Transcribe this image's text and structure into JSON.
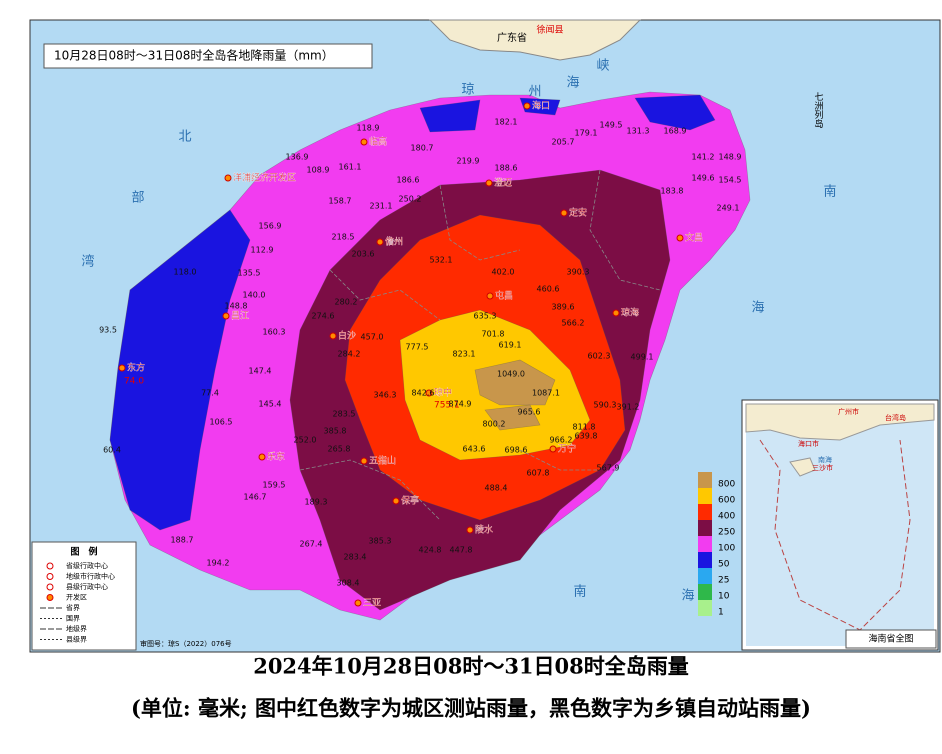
{
  "map_title": "10月28日08时～31日08时全岛各地降雨量（mm）",
  "caption": [
    "2024年10月28日08时～31日08时全岛雨量",
    "(单位: 毫米; 图中红色数字为城区测站雨量，黑色数字为乡镇自动站雨量)"
  ],
  "rain_scale": [
    {
      "value": 800,
      "color": "#c8964b"
    },
    {
      "value": 600,
      "color": "#ffc800"
    },
    {
      "value": 400,
      "color": "#ff2a00"
    },
    {
      "value": 250,
      "color": "#7c0d45"
    },
    {
      "value": 100,
      "color": "#f23cf0"
    },
    {
      "value": 50,
      "color": "#1a14e0"
    },
    {
      "value": 25,
      "color": "#2aa8f0"
    },
    {
      "value": 10,
      "color": "#2fb84a"
    },
    {
      "value": 1,
      "color": "#a8f08c"
    }
  ],
  "regions": [
    "广东省",
    "徐闻县",
    "七洲列岛"
  ],
  "sea_labels": [
    "北",
    "部",
    "湾",
    "琼",
    "州",
    "海",
    "峡",
    "南",
    "海",
    "南",
    "海"
  ],
  "cities": [
    "海口",
    "临高",
    "澄迈",
    "定安",
    "文昌",
    "屯昌",
    "琼海",
    "儋州",
    "洋浦经济开发区",
    "白沙",
    "昌江",
    "东方",
    "乐东",
    "五指山",
    "琼中",
    "万宁",
    "保亭",
    "陵水",
    "三亚"
  ],
  "city_values": [
    "74.0",
    "755.1"
  ],
  "stations": [
    "136.9",
    "108.9",
    "161.1",
    "118.9",
    "180.7",
    "219.9",
    "182.1",
    "188.6",
    "205.7",
    "179.1",
    "149.5",
    "131.3",
    "168.9",
    "141.2",
    "148.9",
    "149.6",
    "154.5",
    "183.8",
    "249.1",
    "186.6",
    "250.2",
    "231.1",
    "158.7",
    "156.9",
    "218.5",
    "112.9",
    "118.0",
    "135.5",
    "140.0",
    "148.8",
    "160.3",
    "274.6",
    "280.2",
    "203.6",
    "532.1",
    "402.0",
    "460.6",
    "390.3",
    "635.3",
    "701.8",
    "619.1",
    "777.5",
    "823.1",
    "1049.0",
    "1087.1",
    "842.6",
    "874.9",
    "965.6",
    "800.2",
    "811.8",
    "966.2",
    "643.6",
    "698.6",
    "607.8",
    "488.4",
    "457.0",
    "284.2",
    "346.3",
    "283.5",
    "385.8",
    "265.8",
    "252.0",
    "145.4",
    "147.4",
    "77.4",
    "106.5",
    "159.5",
    "146.7",
    "188.7",
    "194.2",
    "267.4",
    "283.4",
    "385.3",
    "308.4",
    "60.4",
    "93.5",
    "189.3",
    "389.6",
    "566.2",
    "602.3",
    "499.1",
    "590.3",
    "391.2",
    "639.8",
    "567.9",
    "424.8",
    "447.8"
  ],
  "key": {
    "title": "图　例",
    "items": [
      "省级行政中心",
      "地级市行政中心",
      "县级行政中心",
      "开发区",
      "省界",
      "国界",
      "地级界",
      "县级界"
    ]
  },
  "approval": "审图号：琼S（2022）076号",
  "inset": {
    "title": "海南省全图",
    "labels": [
      "广州市",
      "海口市",
      "南海",
      "三沙市",
      "台湾岛"
    ]
  }
}
